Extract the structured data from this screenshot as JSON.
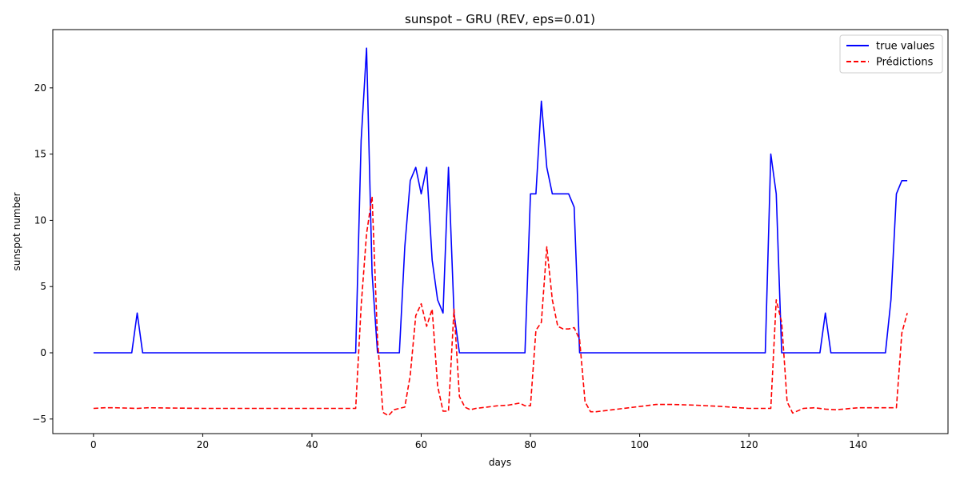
{
  "chart_data": {
    "type": "line",
    "title": "sunspot – GRU (REV, eps=0.01)",
    "xlabel": "days",
    "ylabel": "sunspot number",
    "xlim": [
      -7.45,
      156.45
    ],
    "ylim": [
      -6.1,
      24.4
    ],
    "xticks": [
      0,
      20,
      40,
      60,
      80,
      100,
      120,
      140
    ],
    "yticks": [
      -5,
      0,
      5,
      10,
      15,
      20
    ],
    "grid": false,
    "legend_position": "top-right",
    "series": [
      {
        "name": "true values",
        "color": "#0000ff",
        "style": "solid",
        "x": [
          0,
          7,
          8,
          9,
          48,
          49,
          50,
          51,
          52,
          56,
          57,
          58,
          59,
          60,
          61,
          62,
          63,
          64,
          65,
          66,
          67,
          79,
          80,
          81,
          82,
          83,
          84,
          87,
          88,
          89,
          123,
          124,
          125,
          126,
          133,
          134,
          135,
          145,
          146,
          147,
          148,
          149
        ],
        "y": [
          0,
          0,
          3,
          0,
          0,
          16,
          23,
          6,
          0,
          0,
          8,
          13,
          14,
          12,
          14,
          7,
          4,
          3,
          14,
          3,
          0,
          0,
          12,
          12,
          19,
          14,
          12,
          12,
          11,
          0,
          0,
          15,
          12,
          0,
          0,
          3,
          0,
          0,
          4,
          12,
          13,
          13
        ]
      },
      {
        "name": "Prédictions",
        "color": "#ff0000",
        "style": "dashed",
        "x": [
          0,
          2,
          4,
          8,
          10,
          20,
          30,
          40,
          48,
          49,
          50,
          51,
          52,
          53,
          54,
          55,
          56,
          57,
          58,
          59,
          60,
          61,
          62,
          63,
          64,
          65,
          66,
          67,
          68,
          69,
          70,
          72,
          74,
          76,
          78,
          79,
          80,
          81,
          82,
          83,
          84,
          85,
          86,
          87,
          88,
          89,
          90,
          91,
          92,
          95,
          100,
          103,
          106,
          110,
          115,
          120,
          123,
          124,
          125,
          126,
          127,
          128,
          130,
          132,
          134,
          136,
          140,
          145,
          147,
          148,
          149
        ],
        "y": [
          -4.2,
          -4.15,
          -4.15,
          -4.2,
          -4.15,
          -4.2,
          -4.2,
          -4.2,
          -4.2,
          3.5,
          9,
          11.8,
          1,
          -4.5,
          -4.75,
          -4.3,
          -4.2,
          -4.1,
          -1.7,
          2.8,
          3.7,
          2,
          3.3,
          -2.5,
          -4.4,
          -4.4,
          3.3,
          -3.3,
          -4.1,
          -4.3,
          -4.2,
          -4.1,
          -4,
          -3.95,
          -3.8,
          -4,
          -4,
          1.7,
          2.3,
          8,
          4,
          2,
          1.8,
          1.8,
          1.9,
          1,
          -3.7,
          -4.45,
          -4.45,
          -4.3,
          -4.05,
          -3.9,
          -3.9,
          -3.95,
          -4.05,
          -4.2,
          -4.2,
          -4.2,
          4,
          2.3,
          -3.7,
          -4.55,
          -4.2,
          -4.15,
          -4.25,
          -4.3,
          -4.15,
          -4.15,
          -4.15,
          1.5,
          3
        ]
      }
    ]
  }
}
